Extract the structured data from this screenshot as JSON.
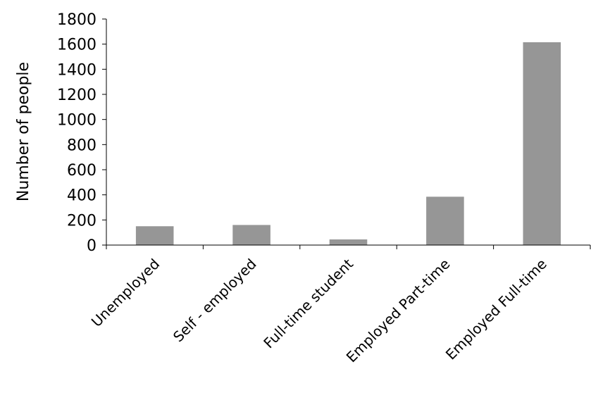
{
  "chart_data": {
    "type": "bar",
    "title": "",
    "xlabel": "",
    "ylabel": "Number of people",
    "categories": [
      "Unemployed",
      "Self - employed",
      "Full-time student",
      "Employed Part-time",
      "Employed Full-time"
    ],
    "values": [
      150,
      160,
      45,
      385,
      1615
    ],
    "ylim": [
      0,
      1800
    ],
    "yticks": [
      "0",
      "200",
      "400",
      "600",
      "800",
      "1000",
      "1200",
      "1400",
      "1600",
      "1800"
    ],
    "grid": false,
    "legend": "none",
    "bar_color": "#969696",
    "axis_color": "#000000"
  }
}
